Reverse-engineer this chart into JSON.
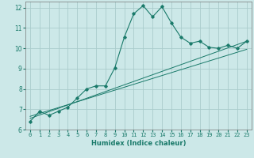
{
  "xlabel": "Humidex (Indice chaleur)",
  "ylabel": "",
  "background_color": "#cce8e8",
  "grid_color": "#aacccc",
  "line_color": "#1a7a6a",
  "xlim": [
    -0.5,
    23.5
  ],
  "ylim": [
    6,
    12.3
  ],
  "x_ticks": [
    0,
    1,
    2,
    3,
    4,
    5,
    6,
    7,
    8,
    9,
    10,
    11,
    12,
    13,
    14,
    15,
    16,
    17,
    18,
    19,
    20,
    21,
    22,
    23
  ],
  "y_ticks": [
    6,
    7,
    8,
    9,
    10,
    11,
    12
  ],
  "main_x": [
    0,
    1,
    2,
    3,
    4,
    5,
    6,
    7,
    8,
    9,
    10,
    11,
    12,
    13,
    14,
    15,
    16,
    17,
    18,
    19,
    20,
    21,
    22,
    23
  ],
  "main_y": [
    6.4,
    6.9,
    6.7,
    6.9,
    7.1,
    7.55,
    8.0,
    8.15,
    8.15,
    9.05,
    10.55,
    11.7,
    12.1,
    11.55,
    12.05,
    11.25,
    10.55,
    10.25,
    10.35,
    10.05,
    10.0,
    10.15,
    10.0,
    10.35
  ],
  "line1_x": [
    0,
    23
  ],
  "line1_y": [
    6.55,
    10.35
  ],
  "line2_x": [
    0,
    23
  ],
  "line2_y": [
    6.65,
    9.95
  ]
}
